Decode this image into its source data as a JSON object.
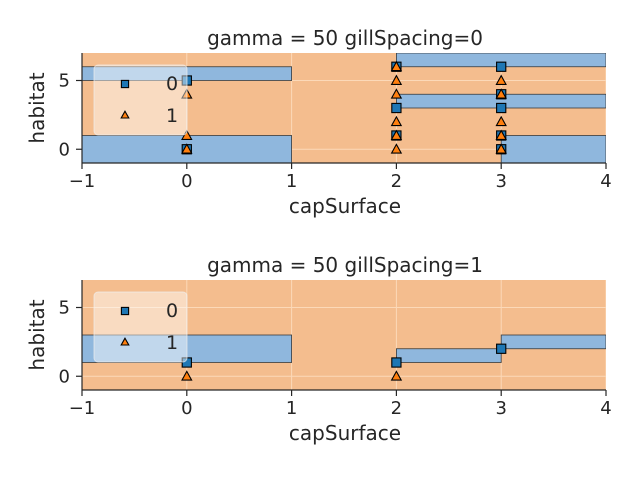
{
  "colors": {
    "class0": "#1f77b4",
    "class1": "#ff7f0e",
    "region0": "#8fb7dd",
    "region1": "#f4bd8e",
    "grid": "#fcd9b8",
    "text": "#262626"
  },
  "chart_data": [
    {
      "type": "scatter",
      "title": "gamma = 50 gillSpacing=0",
      "xlabel": "capSurface",
      "ylabel": "habitat",
      "xlim": [
        -1,
        4
      ],
      "ylim": [
        -1,
        7
      ],
      "xticks": [
        -1,
        0,
        1,
        2,
        3,
        4
      ],
      "yticks": [
        0,
        5
      ],
      "grid": true,
      "legend": {
        "placement": "top-left",
        "entries": [
          "0",
          "1"
        ]
      },
      "decision_regions": {
        "background_class": "1",
        "class0_rects": [
          {
            "x": [
              -1,
              1
            ],
            "y": [
              5,
              6
            ]
          },
          {
            "x": [
              -1,
              1
            ],
            "y": [
              -1,
              1
            ]
          },
          {
            "x": [
              2,
              4
            ],
            "y": [
              6,
              7
            ]
          },
          {
            "x": [
              2,
              4
            ],
            "y": [
              3,
              4
            ]
          },
          {
            "x": [
              3,
              4
            ],
            "y": [
              -1,
              1
            ]
          }
        ]
      },
      "series": [
        {
          "name": "0",
          "marker": "square",
          "points": [
            [
              0,
              5
            ],
            [
              0,
              0
            ],
            [
              2,
              6
            ],
            [
              2,
              3
            ],
            [
              2,
              1
            ],
            [
              3,
              6
            ],
            [
              3,
              4
            ],
            [
              3,
              3
            ],
            [
              3,
              1
            ],
            [
              3,
              0
            ]
          ]
        },
        {
          "name": "1",
          "marker": "triangle",
          "points": [
            [
              0,
              4
            ],
            [
              0,
              1
            ],
            [
              0,
              0
            ],
            [
              2,
              6
            ],
            [
              2,
              5
            ],
            [
              2,
              4
            ],
            [
              2,
              2
            ],
            [
              2,
              1
            ],
            [
              2,
              0
            ],
            [
              3,
              5
            ],
            [
              3,
              4
            ],
            [
              3,
              2
            ],
            [
              3,
              1
            ],
            [
              3,
              0
            ]
          ]
        }
      ]
    },
    {
      "type": "scatter",
      "title": "gamma = 50 gillSpacing=1",
      "xlabel": "capSurface",
      "ylabel": "habitat",
      "xlim": [
        -1,
        4
      ],
      "ylim": [
        -1,
        7
      ],
      "xticks": [
        -1,
        0,
        1,
        2,
        3,
        4
      ],
      "yticks": [
        0,
        5
      ],
      "grid": true,
      "legend": {
        "placement": "top-left",
        "entries": [
          "0",
          "1"
        ]
      },
      "decision_regions": {
        "background_class": "1",
        "class0_rects": [
          {
            "x": [
              -1,
              1
            ],
            "y": [
              1,
              3
            ]
          },
          {
            "x": [
              2,
              3
            ],
            "y": [
              1,
              2
            ]
          },
          {
            "x": [
              3,
              4
            ],
            "y": [
              2,
              3
            ]
          }
        ]
      },
      "series": [
        {
          "name": "0",
          "marker": "square",
          "points": [
            [
              0,
              1
            ],
            [
              2,
              1
            ],
            [
              3,
              2
            ]
          ]
        },
        {
          "name": "1",
          "marker": "triangle",
          "points": [
            [
              0,
              0
            ],
            [
              2,
              0
            ]
          ]
        }
      ]
    }
  ]
}
